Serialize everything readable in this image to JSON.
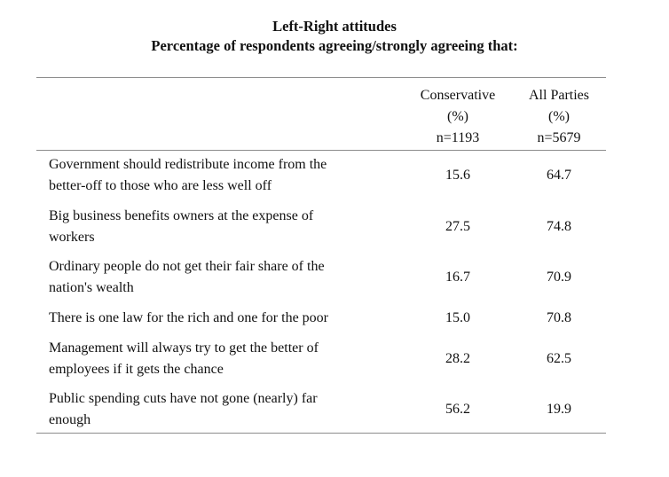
{
  "title": "Left-Right attitudes",
  "subtitle": "Percentage of respondents agreeing/strongly agreeing that:",
  "columns": {
    "conservative": {
      "name": "Conservative",
      "unit": "(%)",
      "n": "n=1193"
    },
    "all_parties": {
      "name": "All Parties",
      "unit": "(%)",
      "n": "n=5679"
    }
  },
  "rows": [
    {
      "statement_line1": "Government should redistribute income from the",
      "statement_line2": "better-off to those who are less well off",
      "conservative": "15.6",
      "all_parties": "64.7"
    },
    {
      "statement_line1": "Big business benefits owners at the expense of",
      "statement_line2": "workers",
      "conservative": "27.5",
      "all_parties": "74.8"
    },
    {
      "statement_line1": "Ordinary people do not get their fair share of the",
      "statement_line2": "nation's wealth",
      "conservative": "16.7",
      "all_parties": "70.9"
    },
    {
      "statement_line1": "There is one law for the rich and one for the poor",
      "statement_line2": "",
      "conservative": "15.0",
      "all_parties": "70.8"
    },
    {
      "statement_line1": "Management will always try to get the better of",
      "statement_line2": "employees if it gets the chance",
      "conservative": "28.2",
      "all_parties": "62.5"
    },
    {
      "statement_line1": "Public spending cuts have not gone (nearly) far",
      "statement_line2": "enough",
      "conservative": "56.2",
      "all_parties": "19.9"
    }
  ]
}
